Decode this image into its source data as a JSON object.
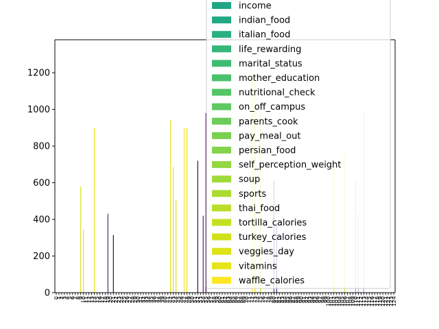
{
  "chart_data": {
    "type": "bar",
    "title": "",
    "xlabel": "",
    "ylabel": "",
    "ylim": [
      0,
      1380
    ],
    "yticks": [
      0,
      200,
      400,
      600,
      800,
      1000,
      1200
    ],
    "grid": false,
    "legend_position": "upper-right",
    "categories": [
      "0",
      "1",
      "2",
      "3",
      "4",
      "5",
      "6",
      "7",
      "8",
      "9",
      "10",
      "11",
      "12",
      "13",
      "14",
      "15",
      "16",
      "17",
      "18",
      "19",
      "20",
      "21",
      "22",
      "23",
      "24",
      "25",
      "26",
      "27",
      "28",
      "29",
      "30",
      "31",
      "32",
      "33",
      "34",
      "35",
      "36",
      "37",
      "38",
      "39",
      "40",
      "41",
      "42",
      "43",
      "44",
      "45",
      "46",
      "47",
      "48",
      "49",
      "50",
      "51",
      "52",
      "53",
      "54",
      "55",
      "56",
      "57",
      "58",
      "59",
      "60",
      "61",
      "62",
      "63",
      "64",
      "65",
      "66",
      "67",
      "68",
      "69",
      "70",
      "71",
      "72",
      "73",
      "74",
      "75",
      "76",
      "77",
      "78",
      "79",
      "80",
      "81",
      "82",
      "83",
      "84",
      "85",
      "86",
      "87",
      "88",
      "89",
      "90",
      "91",
      "92",
      "93",
      "94",
      "95",
      "96",
      "97",
      "98",
      "99",
      "100",
      "101",
      "102",
      "103",
      "104",
      "105",
      "106",
      "107",
      "108",
      "109",
      "110",
      "111",
      "112",
      "113",
      "114",
      "115",
      "116",
      "117",
      "118",
      "119",
      "120",
      "121",
      "122",
      "123",
      "124"
    ],
    "bars": [
      {
        "category": "9",
        "value": 580,
        "color": "#d8e219"
      },
      {
        "category": "10",
        "value": 345,
        "color": "#e2e418"
      },
      {
        "category": "14",
        "value": 900,
        "color": "#e5e419"
      },
      {
        "category": "19",
        "value": 430,
        "color": "#46327e"
      },
      {
        "category": "21",
        "value": 315,
        "color": "#440154"
      },
      {
        "category": "42",
        "value": 940,
        "color": "#e5e419"
      },
      {
        "category": "43",
        "value": 685,
        "color": "#d8e219"
      },
      {
        "category": "44",
        "value": 505,
        "color": "#e2e418"
      },
      {
        "category": "47",
        "value": 900,
        "color": "#fde725"
      },
      {
        "category": "48",
        "value": 900,
        "color": "#e5e419"
      },
      {
        "category": "52",
        "value": 720,
        "color": "#440154"
      },
      {
        "category": "54",
        "value": 420,
        "color": "#482878"
      },
      {
        "category": "55",
        "value": 980,
        "color": "#440154"
      },
      {
        "category": "72",
        "value": 1200,
        "color": "#fde725"
      },
      {
        "category": "73",
        "value": 1150,
        "color": "#e5e419"
      },
      {
        "category": "75",
        "value": 980,
        "color": "#d8e219"
      },
      {
        "category": "80",
        "value": 610,
        "color": "#3e4989"
      },
      {
        "category": "81",
        "value": 380,
        "color": "#472c7a"
      },
      {
        "category": "102",
        "value": 680,
        "color": "#fde725"
      },
      {
        "category": "106",
        "value": 760,
        "color": "#e5e419"
      },
      {
        "category": "110",
        "value": 610,
        "color": "#b5a0d0"
      },
      {
        "category": "111",
        "value": 430,
        "color": "#c8b4de"
      },
      {
        "category": "113",
        "value": 980,
        "color": "#bba6d4"
      }
    ],
    "legend": [
      {
        "label": "income",
        "color": "#21a685"
      },
      {
        "label": "indian_food",
        "color": "#22a884"
      },
      {
        "label": "italian_food",
        "color": "#2ab07f"
      },
      {
        "label": "life_rewarding",
        "color": "#35b779"
      },
      {
        "label": "marital_status",
        "color": "#3fbc73"
      },
      {
        "label": "mother_education",
        "color": "#4ac16d"
      },
      {
        "label": "nutritional_check",
        "color": "#54c568"
      },
      {
        "label": "on_off_campus",
        "color": "#5ec962"
      },
      {
        "label": "parents_cook",
        "color": "#6ccd5a"
      },
      {
        "label": "pay_meal_out",
        "color": "#7ad151"
      },
      {
        "label": "persian_food",
        "color": "#84d44b"
      },
      {
        "label": "self_perception_weight",
        "color": "#93d741"
      },
      {
        "label": "soup",
        "color": "#a0da39"
      },
      {
        "label": "sports",
        "color": "#aadc32"
      },
      {
        "label": "thai_food",
        "color": "#bade28"
      },
      {
        "label": "tortilla_calories",
        "color": "#c5e021"
      },
      {
        "label": "turkey_calories",
        "color": "#d0e11c"
      },
      {
        "label": "veggies_day",
        "color": "#dde318"
      },
      {
        "label": "vitamins",
        "color": "#e7e419"
      },
      {
        "label": "waffle_calories",
        "color": "#fde725"
      }
    ]
  }
}
